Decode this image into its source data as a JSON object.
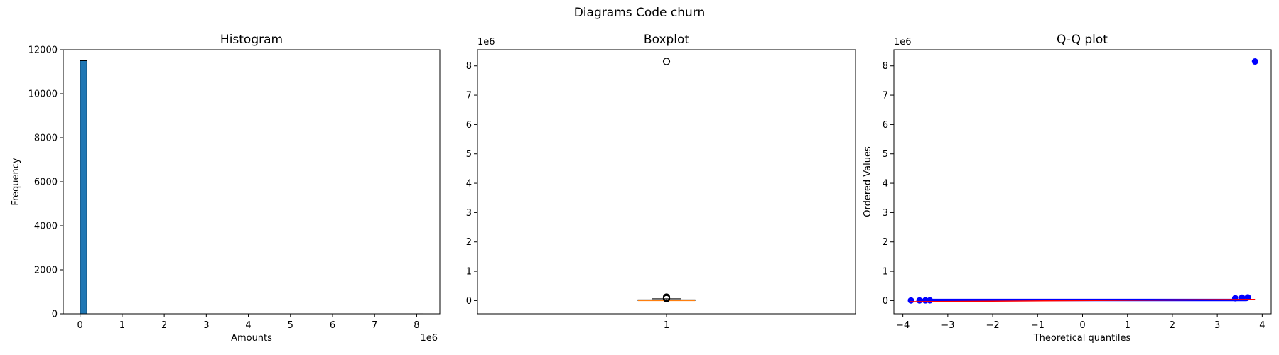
{
  "figure": {
    "suptitle": "Diagrams Code churn"
  },
  "chart_data": [
    {
      "type": "histogram",
      "title": "Histogram",
      "xlabel": "Amounts",
      "ylabel": "Frequency",
      "x_offset_label": "1e6",
      "xlim": [
        -400000,
        8550000
      ],
      "ylim": [
        0,
        12000
      ],
      "xticks": [
        0,
        1,
        2,
        3,
        4,
        5,
        6,
        7,
        8
      ],
      "yticks": [
        0,
        2000,
        4000,
        6000,
        8000,
        10000,
        12000
      ],
      "bins": 50,
      "bin_range": [
        0,
        8150000
      ],
      "counts_nonzero": [
        {
          "bin_index": 0,
          "count": 11500
        },
        {
          "bin_index": 49,
          "count": 1
        }
      ],
      "bar_color": "#1f77b4",
      "edge_color": "#000000"
    },
    {
      "type": "boxplot",
      "title": "Boxplot",
      "y_offset_label": "1e6",
      "xticks": [
        "1"
      ],
      "ylim": [
        -450000,
        8550000
      ],
      "yticks": [
        0,
        1,
        2,
        3,
        4,
        5,
        6,
        7,
        8
      ],
      "box": {
        "q1": 2000,
        "median": 8000,
        "q3": 25000,
        "whisker_low": 0,
        "whisker_high": 60000
      },
      "fliers": [
        65000,
        75000,
        85000,
        100000,
        120000,
        8150000
      ],
      "median_color": "#ff7f0e"
    },
    {
      "type": "scatter",
      "title": "Q-Q plot",
      "xlabel": "Theoretical quantiles",
      "ylabel": "Ordered Values",
      "y_offset_label": "1e6",
      "xlim": [
        -4.2,
        4.2
      ],
      "ylim": [
        -450000,
        8550000
      ],
      "xticks": [
        -4,
        -3,
        -2,
        -1,
        0,
        1,
        2,
        3,
        4
      ],
      "yticks": [
        0,
        1,
        2,
        3,
        4,
        5,
        6,
        7,
        8
      ],
      "points": [
        [
          -3.82,
          5000
        ],
        [
          -3.63,
          4000
        ],
        [
          -3.5,
          6000
        ],
        [
          -3.4,
          8000
        ],
        [
          3.4,
          80000
        ],
        [
          3.55,
          100000
        ],
        [
          3.68,
          110000
        ],
        [
          3.84,
          8150000
        ]
      ],
      "band": {
        "x_from": -3.6,
        "x_to": 3.7,
        "y_lo": -20000,
        "y_hi": 60000
      },
      "fit_line": {
        "x": [
          -3.84,
          3.84
        ],
        "y": [
          -40000,
          40000
        ]
      },
      "point_color": "#0000ff",
      "line_color": "#ff0000"
    }
  ]
}
